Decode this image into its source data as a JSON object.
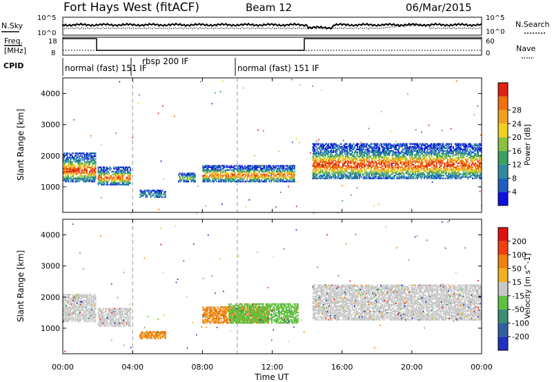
{
  "header": {
    "radar": "Fort Hays West (fitACF)",
    "beam": "Beam 12",
    "date": "06/Mar/2015"
  },
  "noise_panel": {
    "left_label": "N.Sky",
    "right_label": "N.Search",
    "left_ticks": [
      "10^5",
      "10^0"
    ],
    "right_ticks": [
      "10^5",
      "10^0"
    ]
  },
  "freq_panel": {
    "left_label_1": "Freq.",
    "left_label_2": "[MHz]",
    "left_ticks": [
      "18",
      "8"
    ],
    "right_label": "Nave",
    "right_ticks": [
      "60",
      "0"
    ]
  },
  "cpid": {
    "label": "CPID",
    "segments": [
      {
        "start_hour": 0.0,
        "text": "normal (fast) 151 IF"
      },
      {
        "start_hour": 4.0,
        "text": "rbsp 200 IF"
      },
      {
        "start_hour": 10.0,
        "text": "normal (fast) 151 IF"
      }
    ]
  },
  "time_axis": {
    "label": "Time UT",
    "ticks": [
      "00:00",
      "04:00",
      "08:00",
      "12:00",
      "16:00",
      "20:00",
      "00:00"
    ]
  },
  "chart_data": [
    {
      "type": "heatmap",
      "name": "power",
      "ylabel": "Slant Range [km]",
      "xlabel": "Time UT",
      "xlim": [
        0,
        24
      ],
      "ylim": [
        180,
        4500
      ],
      "yticks": [
        "1000",
        "2000",
        "3000",
        "4000"
      ],
      "ytick_values": [
        1000,
        2000,
        3000,
        4000
      ],
      "colorbar": {
        "label": "Power [dB]",
        "ticks": [
          "4",
          "8",
          "12",
          "16",
          "20",
          "24",
          "28"
        ],
        "colors": [
          "#1010e0",
          "#1f5fc0",
          "#2f8aa0",
          "#3ba060",
          "#8bc040",
          "#f0d020",
          "#f0a020",
          "#f07010",
          "#e02010"
        ]
      },
      "regions": [
        {
          "t0": 0.0,
          "t1": 1.9,
          "r0": 1150,
          "r1": 2100,
          "level": 0.55
        },
        {
          "t0": 2.0,
          "t1": 3.9,
          "r0": 1050,
          "r1": 1650,
          "level": 0.5
        },
        {
          "t0": 4.4,
          "t1": 5.9,
          "r0": 650,
          "r1": 900,
          "level": 0.15
        },
        {
          "t0": 6.6,
          "t1": 7.6,
          "r0": 1150,
          "r1": 1450,
          "level": 0.3
        },
        {
          "t0": 8.0,
          "t1": 13.3,
          "r0": 1150,
          "r1": 1700,
          "level": 0.5
        },
        {
          "t0": 14.3,
          "t1": 24.0,
          "r0": 1250,
          "r1": 2400,
          "level": 0.55
        }
      ]
    },
    {
      "type": "heatmap",
      "name": "velocity",
      "ylabel": "Slant Range [km]",
      "xlabel": "Time UT",
      "xlim": [
        0,
        24
      ],
      "ylim": [
        180,
        4500
      ],
      "yticks": [
        "1000",
        "2000",
        "3000",
        "4000"
      ],
      "ytick_values": [
        1000,
        2000,
        3000,
        4000
      ],
      "colorbar": {
        "label": "Velocity [m s^-1]",
        "ticks": [
          "200",
          "100",
          "50",
          "15",
          "-15",
          "-50",
          "-100",
          "-200"
        ],
        "colors": [
          "#2030c0",
          "#2f60a0",
          "#3a9070",
          "#60c040",
          "#c8c8c8",
          "#f0b020",
          "#f08010",
          "#f04010",
          "#e01010"
        ]
      },
      "regions": [
        {
          "t0": 0.0,
          "t1": 1.9,
          "r0": 1200,
          "r1": 2100,
          "color": "gray"
        },
        {
          "t0": 2.0,
          "t1": 3.9,
          "r0": 1050,
          "r1": 1650,
          "color": "gray"
        },
        {
          "t0": 4.4,
          "t1": 5.9,
          "r0": 650,
          "r1": 900,
          "color": "orange"
        },
        {
          "t0": 8.0,
          "t1": 11.8,
          "r0": 1150,
          "r1": 1700,
          "color": "orange"
        },
        {
          "t0": 9.5,
          "t1": 13.5,
          "r0": 1150,
          "r1": 1800,
          "color": "green"
        },
        {
          "t0": 14.3,
          "t1": 24.0,
          "r0": 1250,
          "r1": 2400,
          "color": "gray"
        }
      ]
    }
  ]
}
